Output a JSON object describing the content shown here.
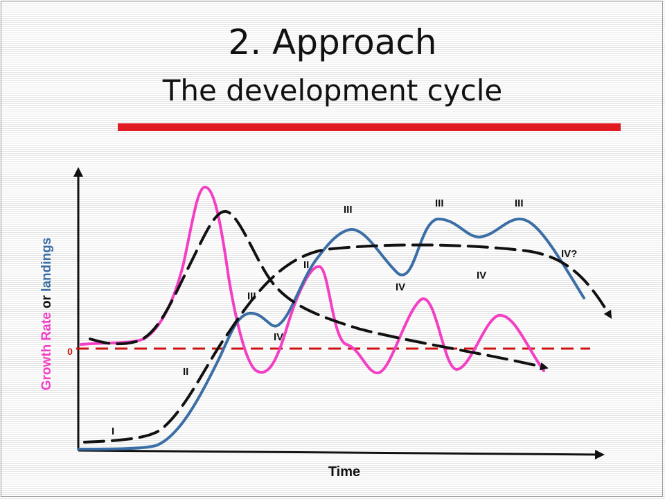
{
  "slide": {
    "title_line1": "2. Approach",
    "title_line2": "The development cycle"
  },
  "colors": {
    "accent_rule": "#e11b22",
    "growth_rate": "#f23fc4",
    "landings": "#3a6ea5",
    "trend": "#111111",
    "zero_line": "#cc1111"
  },
  "diagram": {
    "y_axis_label": {
      "part1": "Growth Rate",
      "part2": " or ",
      "part3": "landings"
    },
    "x_axis_label": "Time",
    "zero_label": "0",
    "stage_labels": {
      "i": "I",
      "ii_low": "II",
      "ii_high": "II",
      "iii_left": "III",
      "iv_left": "IV",
      "iii_mid": "III",
      "iv_mid": "IV",
      "iii_right1": "III",
      "iv_right": "IV",
      "iii_right2": "III",
      "iv_question": "IV?"
    }
  }
}
